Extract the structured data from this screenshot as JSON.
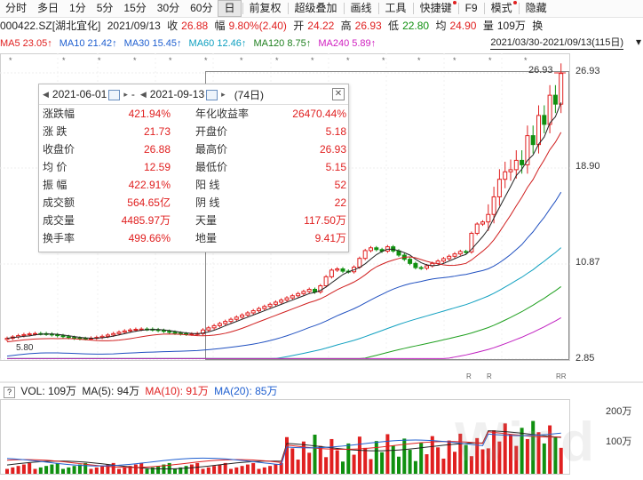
{
  "toolbar": {
    "items": [
      "分时",
      "多日",
      "1分",
      "5分",
      "15分",
      "30分",
      "60分",
      "日",
      "前复权",
      "超级叠加",
      "画线",
      "工具",
      "快捷键",
      "F9",
      "模式",
      "隐藏"
    ],
    "active": "日"
  },
  "quote": {
    "code": "000422.SZ[湖北宜化]",
    "date": "2021/09/13",
    "close_label": "收",
    "close": "26.88",
    "change_label": "幅",
    "change": "9.80%(2.40)",
    "open_label": "开",
    "open": "24.22",
    "high_label": "高",
    "high": "26.93",
    "low_label": "低",
    "low": "22.80",
    "avg_label": "均",
    "avg": "24.90",
    "vol_label": "量",
    "vol": "109万",
    "swap_label": "换"
  },
  "ma": {
    "ma5": "MA5 23.05↑",
    "ma10": "MA10 21.42↑",
    "ma30": "MA30 15.45↑",
    "ma60": "MA60 12.46↑",
    "ma120": "MA120 8.75↑",
    "ma240": "MA240 5.89↑",
    "range": "2021/03/30-2021/09/13(115日)",
    "range_suffix": "▾"
  },
  "popup": {
    "start_date": "2021-06-01",
    "end_date": "2021-09-13",
    "dash": "-",
    "days": "(74日)",
    "rows": [
      {
        "l1": "涨跌幅",
        "v1": "421.94%",
        "l2": "年化收益率",
        "v2": "26470.44%"
      },
      {
        "l1": "涨    跌",
        "v1": "21.73",
        "l2": "开盘价",
        "v2": "5.18"
      },
      {
        "l1": "收盘价",
        "v1": "26.88",
        "l2": "最高价",
        "v2": "26.93"
      },
      {
        "l1": "均    价",
        "v1": "12.59",
        "l2": "最低价",
        "v2": "5.15"
      },
      {
        "l1": "振    幅",
        "v1": "422.91%",
        "l2": "阳    线",
        "v2": "52"
      },
      {
        "l1": "成交额",
        "v1": "564.65亿",
        "l2": "阴    线",
        "v2": "22"
      },
      {
        "l1": "成交量",
        "v1": "4485.97万",
        "l2": "天量",
        "v2": "117.50万"
      },
      {
        "l1": "换手率",
        "v1": "499.66%",
        "l2": "地量",
        "v2": "9.41万"
      }
    ]
  },
  "chart": {
    "price_ticks": [
      "26.93",
      "18.90",
      "10.87",
      "2.85"
    ],
    "high_marker": "26.93",
    "low_marker": "5.80",
    "vol_ticks": [
      "200万",
      "100万"
    ],
    "r_markers": [
      "R",
      "R",
      "RR"
    ]
  },
  "vol": {
    "q_label": "?",
    "vol": "VOL: 109万",
    "ma5": "MA(5): 94万",
    "ma10": "MA(10): 91万",
    "ma20": "MA(20): 85万"
  },
  "watermark": "Wind"
}
